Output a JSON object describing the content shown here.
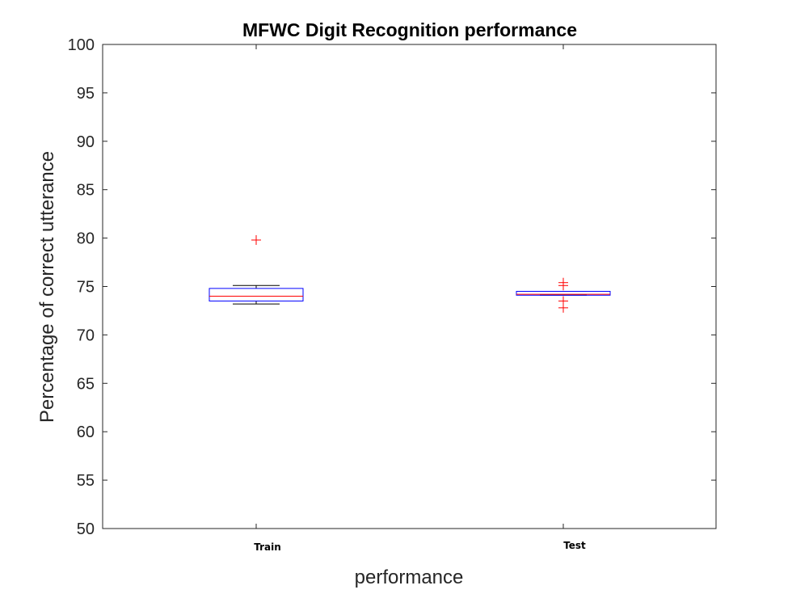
{
  "chart_data": {
    "type": "boxplot",
    "title": "MFWC Digit Recognition  performance",
    "xlabel": "performance",
    "ylabel": "Percentage of correct utterance",
    "ylim": [
      50,
      100
    ],
    "yticks": [
      50,
      55,
      60,
      65,
      70,
      75,
      80,
      85,
      90,
      95,
      100
    ],
    "categories": [
      "Train",
      "Test"
    ],
    "boxes": [
      {
        "category": "Train",
        "whisker_low": 73.2,
        "q1": 73.5,
        "median": 74.0,
        "q3": 74.8,
        "whisker_high": 75.1,
        "outliers": [
          79.8
        ]
      },
      {
        "category": "Test",
        "whisker_low": 74.1,
        "q1": 74.1,
        "median": 74.2,
        "q3": 74.5,
        "whisker_high": 74.5,
        "outliers": [
          72.8,
          73.5,
          75.1,
          75.4
        ]
      }
    ],
    "grid": false,
    "colors": {
      "box": "#0000ff",
      "median": "#ff0000",
      "whisker": "#000000",
      "outlier": "#ff0000",
      "axis": "#262626"
    }
  }
}
